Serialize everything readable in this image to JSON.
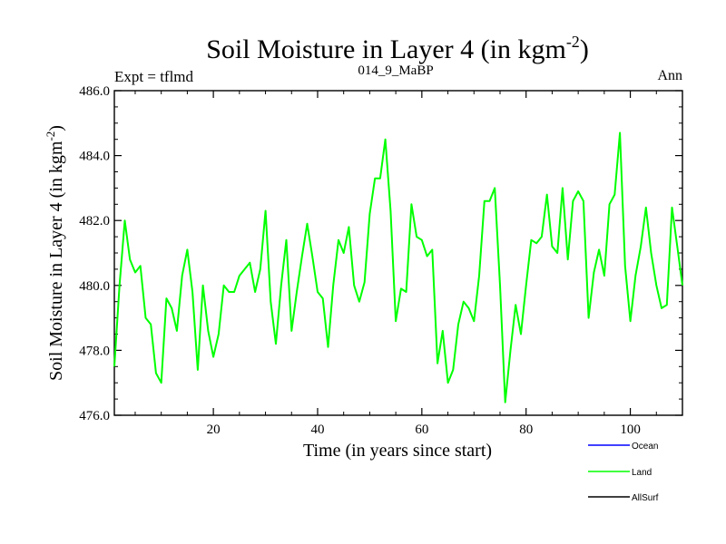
{
  "header": {
    "title_main": "Soil Moisture in Layer 4 (in kgm",
    "title_sup": "-2",
    "title_close": ")",
    "left": "Expt = tflmd",
    "center": "014_9_MaBP",
    "right": "Ann"
  },
  "chart_data": {
    "type": "line",
    "title": "Soil Moisture in Layer 4 (in kgm-2)",
    "xlabel": "Time (in years since start)",
    "ylabel": "Soil Moisture in Layer 4 (in kgm-2)",
    "xlim": [
      1,
      110
    ],
    "ylim": [
      476.0,
      486.0
    ],
    "x_ticks": [
      20,
      40,
      60,
      80,
      100
    ],
    "y_ticks": [
      476.0,
      478.0,
      480.0,
      482.0,
      484.0,
      486.0
    ],
    "y_tick_labels": [
      "476.0",
      "478.0",
      "480.0",
      "482.0",
      "484.0",
      "486.0"
    ],
    "legend": [
      {
        "name": "Ocean",
        "color": "#0000ff"
      },
      {
        "name": "Land",
        "color": "#00ff00"
      },
      {
        "name": "AllSurf",
        "color": "#000000"
      }
    ],
    "series": [
      {
        "name": "Land",
        "color": "#00ff00",
        "x_start": 1,
        "values": [
          477.5,
          480.0,
          482.0,
          480.8,
          480.4,
          480.6,
          479.0,
          478.8,
          477.3,
          477.0,
          479.6,
          479.3,
          478.6,
          480.3,
          481.1,
          479.8,
          477.4,
          480.0,
          478.6,
          477.8,
          478.5,
          480.0,
          479.8,
          479.8,
          480.3,
          480.5,
          480.7,
          479.8,
          480.5,
          482.3,
          479.5,
          478.2,
          480.0,
          481.4,
          478.6,
          479.8,
          480.9,
          481.9,
          480.9,
          479.8,
          479.6,
          478.1,
          480.0,
          481.4,
          481.0,
          481.8,
          480.0,
          479.5,
          480.1,
          482.2,
          483.3,
          483.3,
          484.5,
          482.3,
          478.9,
          479.9,
          479.8,
          482.5,
          481.5,
          481.4,
          480.9,
          481.1,
          477.6,
          478.6,
          477.0,
          477.4,
          478.8,
          479.5,
          479.3,
          478.9,
          480.3,
          482.6,
          482.6,
          483.0,
          480.0,
          476.4,
          478.0,
          479.4,
          478.5,
          480.0,
          481.4,
          481.3,
          481.5,
          482.8,
          481.2,
          481.0,
          483.0,
          480.8,
          482.6,
          482.9,
          482.6,
          479.0,
          480.4,
          481.1,
          480.3,
          482.5,
          482.8,
          484.7,
          480.6,
          478.9,
          480.3,
          481.2,
          482.4,
          481.0,
          480.0,
          479.3,
          479.4,
          482.4,
          481.2,
          480.0
        ]
      }
    ]
  }
}
